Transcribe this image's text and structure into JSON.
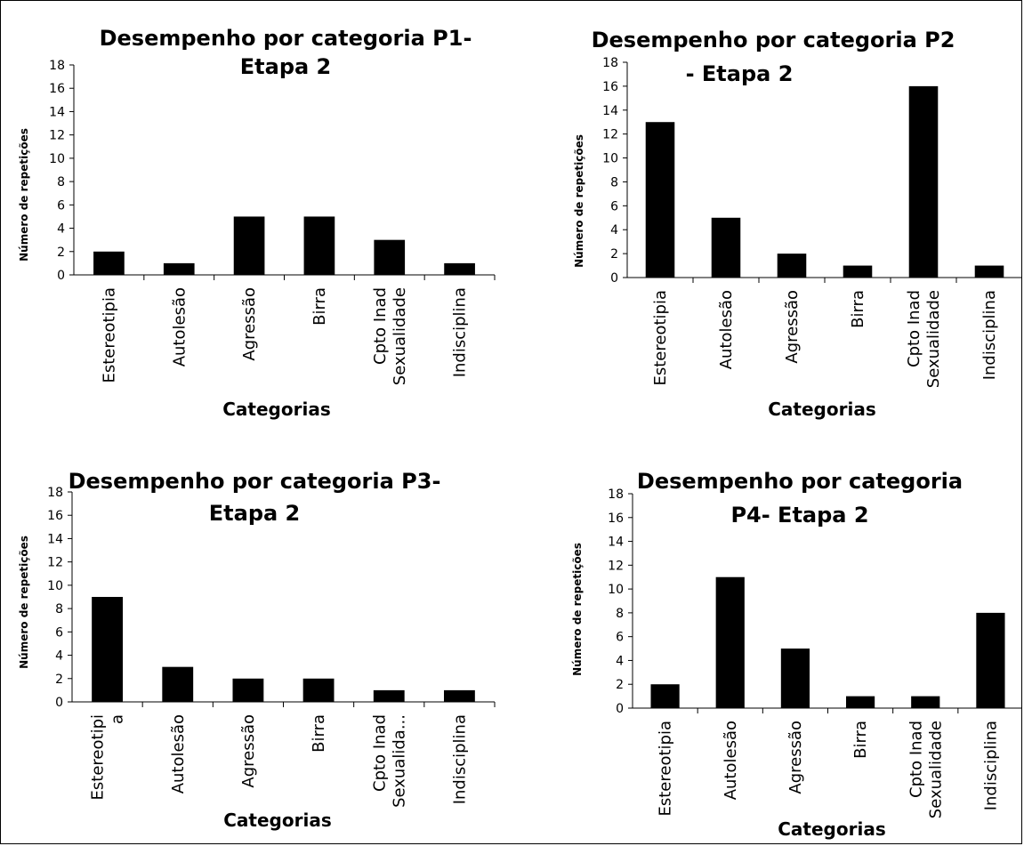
{
  "chart_data": [
    {
      "type": "bar",
      "title": [
        "Desempenho por categoria  P1-",
        "Etapa 2"
      ],
      "xlabel": "Categorias",
      "ylabel": "Número de repetições",
      "ylim": [
        0,
        18
      ],
      "yticks": [
        "0",
        "2",
        "4",
        "6",
        "8",
        "10",
        "12",
        "14",
        "16",
        "18"
      ],
      "categories": [
        [
          "Estereotipia"
        ],
        [
          "Autolesão"
        ],
        [
          "Agressão"
        ],
        [
          "Birra"
        ],
        [
          "Cpto Inad",
          "Sexualidade"
        ],
        [
          "Indisciplina"
        ]
      ],
      "values": [
        2,
        1,
        5,
        5,
        3,
        1
      ],
      "grid": false,
      "bar_color": "#000000"
    },
    {
      "type": "bar",
      "title": [
        "Desempenho por categoria P2",
        "- Etapa 2"
      ],
      "xlabel": "Categorias",
      "ylabel": "Número de repetições",
      "ylim": [
        0,
        18
      ],
      "yticks": [
        "0",
        "2",
        "4",
        "6",
        "8",
        "10",
        "12",
        "14",
        "16",
        "18"
      ],
      "categories": [
        [
          "Estereotipia"
        ],
        [
          "Autolesão"
        ],
        [
          "Agressão"
        ],
        [
          "Birra"
        ],
        [
          "Cpto Inad",
          "Sexualidade"
        ],
        [
          "Indisciplina"
        ]
      ],
      "values": [
        13,
        5,
        2,
        1,
        16,
        1
      ],
      "grid": false,
      "bar_color": "#000000"
    },
    {
      "type": "bar",
      "title": [
        "Desempenho por categoria  P3-",
        "Etapa 2"
      ],
      "xlabel": "Categorias",
      "ylabel": "Número de repetições",
      "ylim": [
        0,
        18
      ],
      "yticks": [
        "0",
        "2",
        "4",
        "6",
        "8",
        "10",
        "12",
        "14",
        "16",
        "18"
      ],
      "categories": [
        [
          "Estereotipi",
          "a"
        ],
        [
          "Autolesão"
        ],
        [
          "Agressão"
        ],
        [
          "Birra"
        ],
        [
          "Cpto Inad",
          "Sexualida..."
        ],
        [
          "Indisciplina"
        ]
      ],
      "values": [
        9,
        3,
        2,
        2,
        1,
        1
      ],
      "grid": false,
      "bar_color": "#000000"
    },
    {
      "type": "bar",
      "title": [
        "Desempenho por categoria",
        "P4- Etapa 2"
      ],
      "xlabel": "Categorias",
      "ylabel": "Número de repetições",
      "ylim": [
        0,
        18
      ],
      "yticks": [
        "0",
        "2",
        "4",
        "6",
        "8",
        "10",
        "12",
        "14",
        "16",
        "18"
      ],
      "categories": [
        [
          "Estereotipia"
        ],
        [
          "Autolesão"
        ],
        [
          "Agressão"
        ],
        [
          "Birra"
        ],
        [
          "Cpto Inad",
          "Sexualidade"
        ],
        [
          "Indisciplina"
        ]
      ],
      "values": [
        2,
        11,
        5,
        1,
        1,
        8
      ],
      "grid": false,
      "bar_color": "#000000"
    }
  ]
}
